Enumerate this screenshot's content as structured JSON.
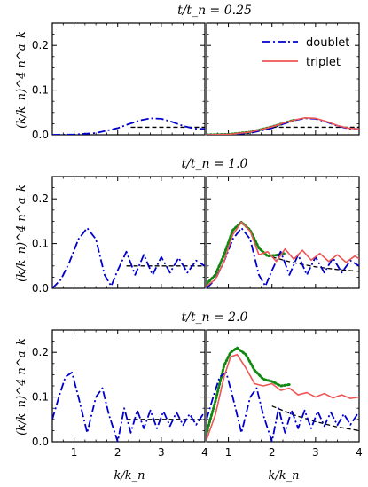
{
  "row_titles": [
    "t/t_n = 0.25",
    "t/t_n = 1.0",
    "t/t_n = 2.0"
  ],
  "y_axis_label": "(k/k_n)^4 n^a_k",
  "x_axis_label": "k/k_n",
  "legend": [
    {
      "label": "doublet",
      "color": "#0000cc",
      "style": "dashdot"
    },
    {
      "label": "triplet",
      "color": "#ee5555",
      "style": "solid"
    }
  ],
  "colors": {
    "doublet": "#0000cc",
    "triplet": "#ee5555",
    "dots": "#118811",
    "reference": "#000000"
  },
  "chart_data": {
    "type": "line",
    "layout": "3 rows x 2 columns, shared axes",
    "xlim": [
      0.5,
      4.0
    ],
    "ylim": [
      0.0,
      0.25
    ],
    "x_ticks": [
      1,
      2,
      3,
      4
    ],
    "y_ticks": [
      0.0,
      0.1,
      0.2
    ],
    "x_tick_labels": [
      "1",
      "2",
      "3",
      "4"
    ],
    "y_tick_labels": [
      "0.0",
      "0.1",
      "0.2"
    ],
    "panels": [
      {
        "row": 0,
        "col": 0,
        "series": [
          {
            "name": "doublet",
            "style": "dashdot",
            "color": "#0000cc",
            "x": [
              0.5,
              1.0,
              1.5,
              2.0,
              2.25,
              2.5,
              2.75,
              3.0,
              3.25,
              3.5,
              3.75,
              4.0
            ],
            "y": [
              0.0,
              0.0005,
              0.004,
              0.015,
              0.024,
              0.032,
              0.037,
              0.036,
              0.029,
              0.02,
              0.014,
              0.013
            ]
          },
          {
            "name": "reference",
            "style": "dashed",
            "color": "#000000",
            "x": [
              2.3,
              4.0
            ],
            "y": [
              0.017,
              0.017
            ]
          }
        ]
      },
      {
        "row": 0,
        "col": 1,
        "series": [
          {
            "name": "doublet",
            "style": "dashdot",
            "color": "#0000cc",
            "x": [
              0.5,
              1.0,
              1.5,
              2.0,
              2.25,
              2.5,
              2.75,
              3.0,
              3.25,
              3.5,
              3.75,
              4.0
            ],
            "y": [
              0.0,
              0.0005,
              0.004,
              0.015,
              0.024,
              0.032,
              0.037,
              0.036,
              0.029,
              0.02,
              0.014,
              0.013
            ]
          },
          {
            "name": "triplet",
            "style": "solid",
            "color": "#ee5555",
            "x": [
              0.5,
              1.0,
              1.5,
              2.0,
              2.25,
              2.5,
              2.75,
              3.0,
              3.25,
              3.5,
              3.75,
              4.0
            ],
            "y": [
              0.0,
              0.001,
              0.006,
              0.018,
              0.026,
              0.033,
              0.038,
              0.037,
              0.03,
              0.021,
              0.015,
              0.013
            ]
          },
          {
            "name": "dots",
            "style": "dotted",
            "color": "#118811",
            "x": [
              0.5,
              1.0,
              1.5,
              2.0,
              2.5
            ],
            "y": [
              0.0,
              0.001,
              0.006,
              0.018,
              0.033
            ]
          },
          {
            "name": "reference",
            "style": "dashed",
            "color": "#000000",
            "x": [
              2.0,
              4.0
            ],
            "y": [
              0.017,
              0.017
            ]
          }
        ]
      },
      {
        "row": 1,
        "col": 0,
        "series": [
          {
            "name": "doublet",
            "style": "dashdot",
            "color": "#0000cc",
            "x": [
              0.5,
              0.7,
              0.9,
              1.1,
              1.3,
              1.5,
              1.7,
              1.85,
              2.0,
              2.2,
              2.4,
              2.6,
              2.8,
              3.0,
              3.2,
              3.4,
              3.6,
              3.8,
              4.0
            ],
            "y": [
              0.0,
              0.02,
              0.06,
              0.11,
              0.135,
              0.11,
              0.03,
              0.005,
              0.04,
              0.082,
              0.03,
              0.075,
              0.03,
              0.07,
              0.035,
              0.068,
              0.035,
              0.062,
              0.05
            ]
          },
          {
            "name": "reference",
            "style": "dashed",
            "color": "#000000",
            "x": [
              2.2,
              4.0
            ],
            "y": [
              0.05,
              0.05
            ]
          }
        ]
      },
      {
        "row": 1,
        "col": 1,
        "series": [
          {
            "name": "doublet",
            "style": "dashdot",
            "color": "#0000cc",
            "x": [
              0.5,
              0.7,
              0.9,
              1.1,
              1.3,
              1.5,
              1.7,
              1.85,
              2.0,
              2.2,
              2.4,
              2.6,
              2.8,
              3.0,
              3.2,
              3.4,
              3.6,
              3.8,
              4.0
            ],
            "y": [
              0.0,
              0.02,
              0.06,
              0.11,
              0.135,
              0.11,
              0.03,
              0.005,
              0.04,
              0.082,
              0.03,
              0.075,
              0.03,
              0.07,
              0.035,
              0.068,
              0.035,
              0.062,
              0.05
            ]
          },
          {
            "name": "triplet",
            "style": "solid",
            "color": "#ee5555",
            "x": [
              0.5,
              0.7,
              0.9,
              1.1,
              1.3,
              1.5,
              1.7,
              1.9,
              2.1,
              2.3,
              2.5,
              2.7,
              2.9,
              3.1,
              3.3,
              3.5,
              3.7,
              3.9,
              4.0
            ],
            "y": [
              0.005,
              0.02,
              0.06,
              0.12,
              0.148,
              0.128,
              0.075,
              0.082,
              0.06,
              0.088,
              0.065,
              0.085,
              0.063,
              0.078,
              0.06,
              0.075,
              0.058,
              0.072,
              0.066
            ]
          },
          {
            "name": "dots",
            "style": "dotted",
            "color": "#118811",
            "x": [
              0.5,
              0.7,
              0.9,
              1.1,
              1.3,
              1.5,
              1.7,
              1.9,
              2.1,
              2.3
            ],
            "y": [
              0.01,
              0.03,
              0.075,
              0.13,
              0.148,
              0.13,
              0.09,
              0.072,
              0.074,
              0.078
            ]
          },
          {
            "name": "reference",
            "style": "dashed",
            "color": "#000000",
            "x": [
              2.0,
              2.5,
              3.0,
              3.5,
              4.0
            ],
            "y": [
              0.07,
              0.057,
              0.048,
              0.042,
              0.038
            ]
          }
        ]
      },
      {
        "row": 2,
        "col": 0,
        "series": [
          {
            "name": "doublet",
            "style": "dashdot",
            "color": "#0000cc",
            "x": [
              0.5,
              0.65,
              0.8,
              0.95,
              1.1,
              1.3,
              1.5,
              1.65,
              1.8,
              2.0,
              2.15,
              2.3,
              2.45,
              2.6,
              2.75,
              2.9,
              3.05,
              3.2,
              3.35,
              3.5,
              3.65,
              3.8,
              3.95,
              4.0
            ],
            "y": [
              0.05,
              0.1,
              0.145,
              0.155,
              0.1,
              0.02,
              0.1,
              0.12,
              0.06,
              0.0,
              0.075,
              0.02,
              0.07,
              0.03,
              0.07,
              0.03,
              0.068,
              0.035,
              0.066,
              0.037,
              0.062,
              0.038,
              0.06,
              0.055
            ]
          },
          {
            "name": "reference",
            "style": "dashed",
            "color": "#000000",
            "x": [
              2.2,
              4.0
            ],
            "y": [
              0.05,
              0.05
            ]
          }
        ]
      },
      {
        "row": 2,
        "col": 1,
        "series": [
          {
            "name": "doublet",
            "style": "dashdot",
            "color": "#0000cc",
            "x": [
              0.5,
              0.65,
              0.8,
              0.95,
              1.1,
              1.3,
              1.5,
              1.65,
              1.8,
              2.0,
              2.15,
              2.3,
              2.45,
              2.6,
              2.75,
              2.9,
              3.05,
              3.2,
              3.35,
              3.5,
              3.65,
              3.8,
              3.95,
              4.0
            ],
            "y": [
              0.05,
              0.1,
              0.145,
              0.155,
              0.1,
              0.02,
              0.1,
              0.12,
              0.06,
              0.0,
              0.075,
              0.02,
              0.07,
              0.03,
              0.07,
              0.03,
              0.068,
              0.035,
              0.066,
              0.037,
              0.062,
              0.038,
              0.06,
              0.055
            ]
          },
          {
            "name": "triplet",
            "style": "solid",
            "color": "#ee5555",
            "x": [
              0.5,
              0.7,
              0.9,
              1.05,
              1.2,
              1.4,
              1.6,
              1.8,
              2.0,
              2.2,
              2.4,
              2.6,
              2.8,
              3.0,
              3.2,
              3.4,
              3.6,
              3.8,
              4.0
            ],
            "y": [
              0.005,
              0.06,
              0.145,
              0.19,
              0.195,
              0.165,
              0.13,
              0.125,
              0.13,
              0.115,
              0.12,
              0.105,
              0.11,
              0.1,
              0.108,
              0.098,
              0.105,
              0.097,
              0.1
            ]
          },
          {
            "name": "dots",
            "style": "dotted",
            "color": "#118811",
            "x": [
              0.5,
              0.7,
              0.9,
              1.05,
              1.2,
              1.4,
              1.6,
              1.8,
              2.0,
              2.2,
              2.4
            ],
            "y": [
              0.02,
              0.09,
              0.17,
              0.2,
              0.21,
              0.195,
              0.16,
              0.14,
              0.135,
              0.125,
              0.128
            ]
          },
          {
            "name": "reference",
            "style": "dashed",
            "color": "#000000",
            "x": [
              2.0,
              2.5,
              3.0,
              3.5,
              4.0
            ],
            "y": [
              0.08,
              0.06,
              0.045,
              0.033,
              0.025
            ]
          }
        ]
      }
    ]
  }
}
